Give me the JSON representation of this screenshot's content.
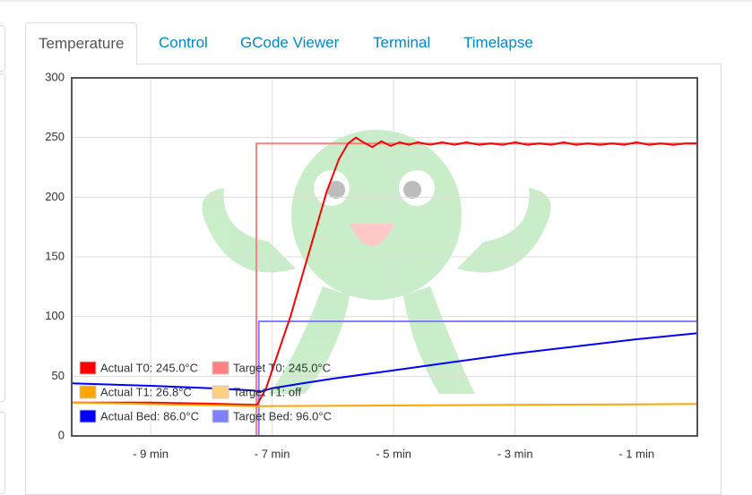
{
  "tabs": [
    "Temperature",
    "Control",
    "GCode Viewer",
    "Terminal",
    "Timelapse"
  ],
  "chart_data": {
    "type": "line",
    "xlim": [
      -10.3,
      0
    ],
    "xticks": [
      {
        "value": -9,
        "label": "- 9 min"
      },
      {
        "value": -7,
        "label": "- 7 min"
      },
      {
        "value": -5,
        "label": "- 5 min"
      },
      {
        "value": -3,
        "label": "- 3 min"
      },
      {
        "value": -1,
        "label": "- 1 min"
      }
    ],
    "ylim": [
      0,
      300
    ],
    "yticks": [
      0,
      50,
      100,
      150,
      200,
      250,
      300
    ],
    "grid": true,
    "legend": "lower left",
    "series": [
      {
        "name": "Target T0: 245.0°C",
        "color": "#ff8080",
        "x": [
          -10.3,
          -7.26,
          -7.26,
          0
        ],
        "values": [
          0,
          0,
          245,
          245
        ]
      },
      {
        "name": "Target T1: off",
        "color": "#ffd080",
        "x": [
          -10.3,
          0
        ],
        "values": [
          0,
          0
        ]
      },
      {
        "name": "Target Bed: 96.0°C",
        "color": "#8080ff",
        "x": [
          -10.3,
          -7.22,
          -7.22,
          0
        ],
        "values": [
          0,
          0,
          96,
          96
        ]
      },
      {
        "name": "Actual T0: 245.0°C",
        "color": "#ff0000",
        "x": [
          -10.3,
          -9,
          -8,
          -7.25,
          -7.1,
          -6.9,
          -6.7,
          -6.5,
          -6.3,
          -6.1,
          -5.9,
          -5.75,
          -5.62,
          -5.5,
          -5.35,
          -5.2,
          -5.05,
          -4.9,
          -4.75,
          -4.6,
          -4.4,
          -4.2,
          -4.0,
          -3.8,
          -3.6,
          -3.4,
          -3.2,
          -3.0,
          -2.8,
          -2.6,
          -2.4,
          -2.2,
          -2.0,
          -1.8,
          -1.6,
          -1.4,
          -1.2,
          -1.0,
          -0.8,
          -0.6,
          -0.4,
          -0.2,
          0
        ],
        "values": [
          28,
          28,
          27,
          26,
          40,
          70,
          100,
          135,
          170,
          205,
          232,
          245,
          250,
          246,
          242,
          247,
          243,
          246,
          244,
          246,
          244,
          246,
          244,
          246,
          244,
          245,
          244,
          246,
          244,
          245,
          244,
          246,
          244,
          245,
          244,
          245,
          244,
          246,
          244,
          245,
          244,
          245,
          245
        ]
      },
      {
        "name": "Actual T1: 26.8°C",
        "color": "#ffa500",
        "x": [
          -10.3,
          -7.25,
          -5,
          -3,
          -1,
          0
        ],
        "values": [
          28,
          25,
          25.5,
          26,
          26.5,
          26.8
        ]
      },
      {
        "name": "Actual Bed: 86.0°C",
        "color": "#0000ff",
        "x": [
          -10.3,
          -9,
          -8,
          -7.3,
          -7.2,
          -7,
          -6.5,
          -6,
          -5,
          -4,
          -3,
          -2,
          -1,
          0
        ],
        "values": [
          44,
          42,
          40,
          38,
          37,
          40,
          44,
          48,
          55,
          62,
          69,
          75,
          81,
          86
        ]
      }
    ]
  }
}
